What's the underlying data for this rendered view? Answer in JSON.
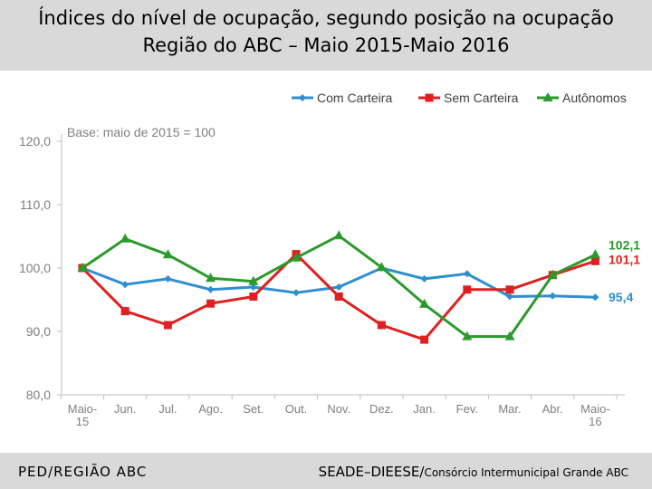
{
  "header": {
    "title_line1": "Índices do nível de ocupação, segundo posição na ocupação",
    "title_line2": "Região do ABC – Maio 2015-Maio 2016"
  },
  "footer": {
    "left": "PED/REGIÃO ABC",
    "right_main": "SEADE–DIEESE/",
    "right_small": "Consórcio Intermunicipal Grande ABC"
  },
  "chart_data": {
    "type": "line",
    "note": "Base: maio de 2015 = 100",
    "categories": [
      [
        "Maio-",
        "15"
      ],
      [
        "Jun."
      ],
      [
        "Jul."
      ],
      [
        "Ago."
      ],
      [
        "Set."
      ],
      [
        "Out."
      ],
      [
        "Nov."
      ],
      [
        "Dez."
      ],
      [
        "Jan."
      ],
      [
        "Fev."
      ],
      [
        "Mar."
      ],
      [
        "Abr."
      ],
      [
        "Maio-",
        "16"
      ]
    ],
    "yticks": [
      "80,0",
      "90,0",
      "100,0",
      "110,0",
      "120,0"
    ],
    "ylim": [
      80,
      120
    ],
    "series": [
      {
        "name": "Com Carteira",
        "color": "#2e8fd0",
        "marker": "diamond",
        "values": [
          100,
          97.4,
          98.3,
          96.6,
          97.0,
          96.1,
          97.0,
          100.0,
          98.3,
          99.1,
          95.5,
          95.6,
          95.4
        ],
        "end_label": "95,4"
      },
      {
        "name": "Sem Carteira",
        "color": "#e02020",
        "marker": "square",
        "values": [
          100,
          93.2,
          91.0,
          94.4,
          95.5,
          102.2,
          95.5,
          91.0,
          88.7,
          96.6,
          96.6,
          98.9,
          101.1
        ],
        "end_label": "101,1"
      },
      {
        "name": "Autônomos",
        "color": "#2a9a2a",
        "marker": "triangle",
        "values": [
          100,
          104.6,
          102.1,
          98.4,
          97.9,
          101.6,
          105.1,
          100.1,
          94.3,
          89.2,
          89.2,
          98.9,
          102.1
        ],
        "end_label": "102,1"
      }
    ]
  }
}
